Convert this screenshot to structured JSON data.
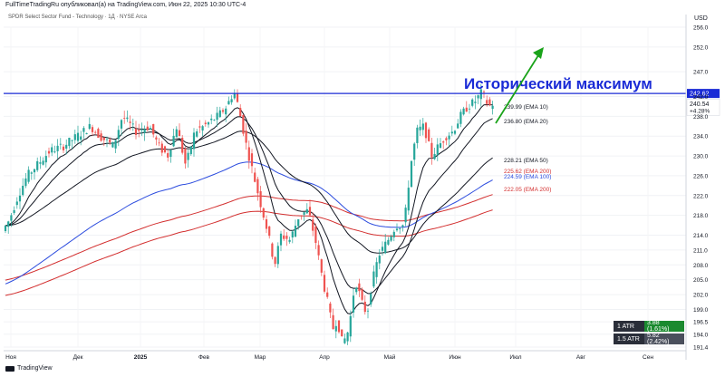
{
  "header": {
    "caption": "FullTimeTradingRu опубликовал(а) на TradingView.com, Июн 22, 2025 10:30 UTC-4",
    "instrument": "SPDR Select Sector Fund - Technology · 1Д · NYSE Arca",
    "currency": "USD"
  },
  "annotation": {
    "text": "Исторический максимум",
    "color": "#1a2bd6",
    "arrow_color": "#1aa31a"
  },
  "atr": [
    {
      "label": "1 ATR",
      "value": "3.88 (1.61%)",
      "color": "#1b8a2f"
    },
    {
      "label": "1.5 ATR",
      "value": "5.82 (2.42%)",
      "color": "#4a4f5c"
    }
  ],
  "footer": {
    "logo": "TradingView"
  },
  "chart_data": {
    "type": "candlestick",
    "x_labels": [
      "Ноя",
      "Дек",
      "2025",
      "Фев",
      "Мар",
      "Апр",
      "Май",
      "Июн",
      "Июл",
      "Авг",
      "Сен"
    ],
    "y_ticks": [
      191.4,
      194.0,
      196.5,
      199.0,
      202.0,
      205.0,
      208.0,
      211.0,
      214.0,
      218.0,
      222.0,
      226.0,
      230.0,
      234.0,
      238.0,
      242.0,
      247.0,
      252.0,
      256.0
    ],
    "ylim": [
      191.4,
      256.0
    ],
    "resistance_level": 242.62,
    "price_labels": {
      "resistance": "242.62",
      "last_price": "240.54",
      "last_change": "+4.28%"
    },
    "ema_labels": [
      {
        "value": "239.99 (EMA 10)",
        "y": 239.99,
        "color": "#131722"
      },
      {
        "value": "236.80 (EMA 20)",
        "y": 236.8,
        "color": "#131722"
      },
      {
        "value": "228.21 (EMA 50)",
        "y": 228.21,
        "color": "#131722"
      },
      {
        "value": "225.62 (EMA 200)",
        "y": 225.62,
        "color": "#d32f2f"
      },
      {
        "value": "224.59 (EMA 100)",
        "y": 224.59,
        "color": "#2c4cde"
      },
      {
        "value": "222.05 (EMA 200)",
        "y": 222.05,
        "color": "#d32f2f"
      }
    ],
    "grid": true,
    "series_colors": {
      "up": "#26a69a",
      "down": "#ef5350",
      "ema_fast": "#131722",
      "ema_100": "#2c4cde",
      "ema_200": "#d32f2f",
      "resistance": "#1a2bd6"
    }
  }
}
